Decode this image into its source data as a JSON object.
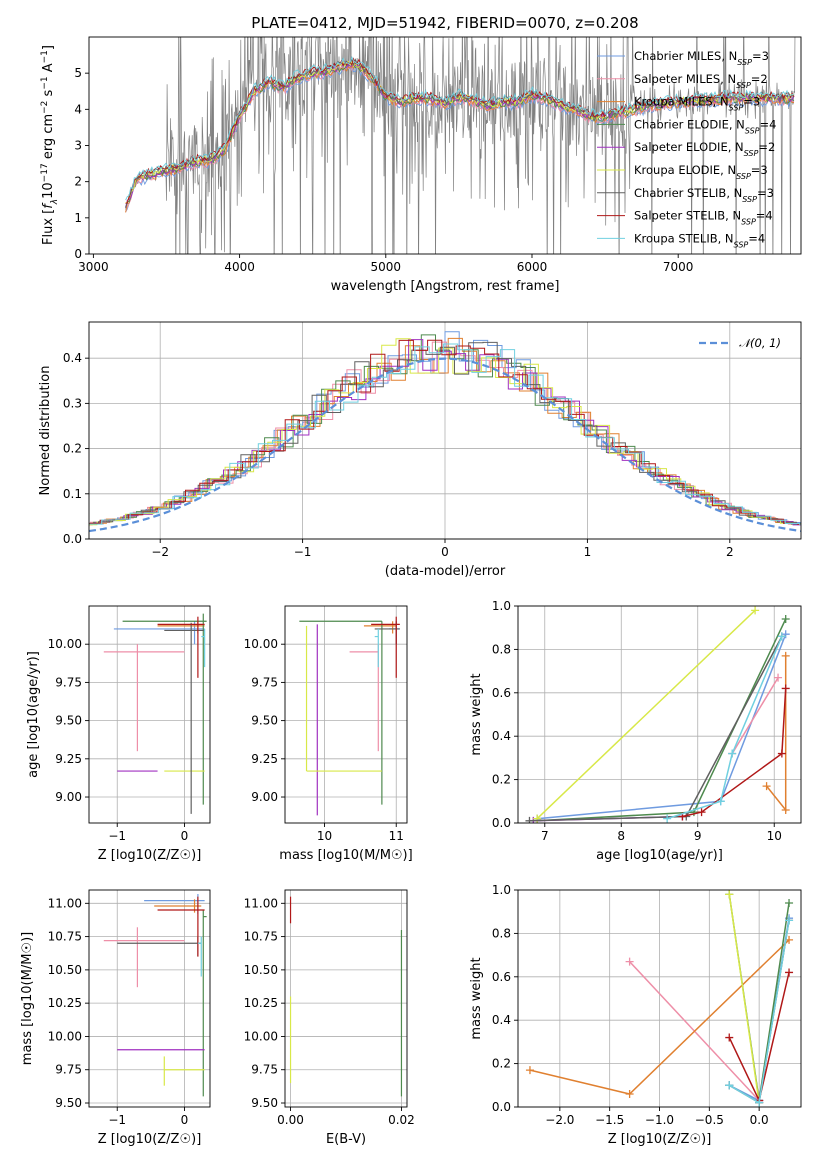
{
  "title": "PLATE=0412, MJD=51942, FIBERID=0070, z=0.208",
  "colors": {
    "Chabrier MILES": "#6f9be0",
    "Salpeter MILES": "#ee8fa8",
    "Kroupa MILES": "#e08030",
    "Chabrier ELODIE": "#4e8a4e",
    "Salpeter ELODIE": "#a030c0",
    "Kroupa ELODIE": "#d8e848",
    "Chabrier STELIB": "#606060",
    "Salpeter STELIB": "#b01818",
    "Kroupa STELIB": "#70d0e0"
  },
  "chart_data": [
    {
      "id": "spectrum",
      "type": "line",
      "xlabel": "wavelength [Angstrom, rest frame]",
      "ylabel": "Flux [f_λ 10^-17 erg cm^-2 s^-1 A^-1]",
      "xlim": [
        2970,
        7840
      ],
      "ylim": [
        0,
        6
      ],
      "xticks": [
        3000,
        4000,
        5000,
        6000,
        7000
      ],
      "yticks": [
        0,
        1,
        2,
        3,
        4,
        5
      ],
      "grid": false,
      "legend_position": "right",
      "legend": [
        {
          "name": "Chabrier MILES",
          "n": "3"
        },
        {
          "name": "Salpeter MILES",
          "n": "2"
        },
        {
          "name": "Kroupa MILES",
          "n": "3"
        },
        {
          "name": "Chabrier ELODIE",
          "n": "4"
        },
        {
          "name": "Salpeter ELODIE",
          "n": "2"
        },
        {
          "name": "Kroupa ELODIE",
          "n": "3"
        },
        {
          "name": "Chabrier STELIB",
          "n": "3"
        },
        {
          "name": "Salpeter STELIB",
          "n": "4"
        },
        {
          "name": "Kroupa STELIB",
          "n": "4"
        }
      ],
      "model_continuum": {
        "x": [
          3220,
          3300,
          3400,
          3500,
          3600,
          3700,
          3800,
          3900,
          4000,
          4100,
          4200,
          4300,
          4400,
          4500,
          4600,
          4700,
          4800,
          4900,
          5000,
          5100,
          5200,
          5300,
          5400,
          5500,
          5600,
          5700,
          5800,
          5900,
          6000,
          6100,
          6200,
          6300,
          6400,
          6500,
          6600,
          6700,
          6800,
          6900,
          7000,
          7100,
          7200,
          7300,
          7400,
          7500,
          7600,
          7700,
          7800
        ],
        "y": [
          1.3,
          2.1,
          2.2,
          2.3,
          2.4,
          2.55,
          2.6,
          2.9,
          3.8,
          4.5,
          4.75,
          4.6,
          4.9,
          5.0,
          5.05,
          5.2,
          5.25,
          4.9,
          4.35,
          4.2,
          4.3,
          4.3,
          4.15,
          4.35,
          4.25,
          4.1,
          4.2,
          4.2,
          4.4,
          4.3,
          4.1,
          4.0,
          3.8,
          3.8,
          3.9,
          4.0,
          4.1,
          4.15,
          4.2,
          4.25,
          4.25,
          4.3,
          4.3,
          4.3,
          4.3,
          4.3,
          4.3
        ]
      }
    },
    {
      "id": "residuals",
      "type": "area",
      "xlabel": "(data-model)/error",
      "ylabel": "Normed distribution",
      "xlim": [
        -2.5,
        2.5
      ],
      "ylim": [
        0,
        0.48
      ],
      "xticks": [
        -2,
        -1,
        0,
        1,
        2
      ],
      "yticks": [
        0.0,
        0.1,
        0.2,
        0.3,
        0.4
      ],
      "grid": true,
      "legend_label": "𝒩(0, 1)",
      "legend_position": "top-right"
    },
    {
      "id": "age-vs-Z",
      "type": "scatter",
      "xlabel": "Z [log10(Z/Z☉)]",
      "ylabel": "age [log10(age/yr)]",
      "xlim": [
        -1.42,
        0.38
      ],
      "ylim": [
        8.83,
        10.25
      ],
      "xticks": [
        -1,
        0
      ],
      "yticks": [
        9.0,
        9.25,
        9.5,
        9.75,
        10.0
      ],
      "grid": true,
      "points": [
        {
          "model": "Chabrier MILES",
          "x": 0.15,
          "y": 10.1,
          "xerr": [
            1.2,
            0.15
          ],
          "yerr": [
            0.1,
            0.05
          ]
        },
        {
          "model": "Salpeter MILES",
          "x": -0.7,
          "y": 9.95,
          "xerr": [
            0.5,
            0.7
          ],
          "yerr": [
            0.65,
            0.05
          ]
        },
        {
          "model": "Kroupa MILES",
          "x": 0.2,
          "y": 10.12,
          "xerr": [
            0.6,
            0.1
          ],
          "yerr": [
            0.05,
            0.03
          ]
        },
        {
          "model": "Chabrier ELODIE",
          "x": 0.28,
          "y": 10.15,
          "xerr": [
            1.2,
            0.05
          ],
          "yerr": [
            1.2,
            0.05
          ]
        },
        {
          "model": "Salpeter ELODIE",
          "x": -1.0,
          "y": 9.17,
          "xerr": [
            0.0,
            0.6
          ],
          "yerr": [
            0.0,
            0.0
          ]
        },
        {
          "model": "Kroupa ELODIE",
          "x": -0.3,
          "y": 9.17,
          "xerr": [
            0.0,
            0.6
          ],
          "yerr": [
            0.0,
            0.0
          ]
        },
        {
          "model": "Chabrier STELIB",
          "x": 0.1,
          "y": 10.09,
          "xerr": [
            0.4,
            0.2
          ],
          "yerr": [
            1.2,
            0.05
          ]
        },
        {
          "model": "Salpeter STELIB",
          "x": 0.2,
          "y": 10.13,
          "xerr": [
            0.6,
            0.1
          ],
          "yerr": [
            0.35,
            0.05
          ]
        },
        {
          "model": "Kroupa STELIB",
          "x": 0.3,
          "y": 10.05,
          "xerr": [
            0.05,
            0.0
          ],
          "yerr": [
            0.2,
            0.05
          ]
        }
      ]
    },
    {
      "id": "age-vs-mass",
      "type": "scatter",
      "xlabel": "mass [log10(M/M☉)]",
      "ylabel": "",
      "xlim": [
        9.45,
        11.15
      ],
      "ylim": [
        8.83,
        10.25
      ],
      "xticks": [
        10,
        11
      ],
      "yticks": [
        9.0,
        9.25,
        9.5,
        9.75,
        10.0
      ],
      "grid": true,
      "points": [
        {
          "model": "Chabrier MILES",
          "x": 11.0,
          "y": 10.1,
          "xerr": [
            0.1,
            0.05
          ],
          "yerr": [
            0.1,
            0.05
          ]
        },
        {
          "model": "Salpeter MILES",
          "x": 10.75,
          "y": 9.95,
          "xerr": [
            0.4,
            0.0
          ],
          "yerr": [
            0.65,
            0.05
          ]
        },
        {
          "model": "Kroupa MILES",
          "x": 10.95,
          "y": 10.12,
          "xerr": [
            0.4,
            0.05
          ],
          "yerr": [
            0.05,
            0.03
          ]
        },
        {
          "model": "Chabrier ELODIE",
          "x": 10.8,
          "y": 10.15,
          "xerr": [
            1.15,
            0.0
          ],
          "yerr": [
            1.2,
            0.0
          ]
        },
        {
          "model": "Salpeter ELODIE",
          "x": 9.9,
          "y": 10.13,
          "xerr": [
            0.0,
            0.0
          ],
          "yerr": [
            1.25,
            0.0
          ]
        },
        {
          "model": "Kroupa ELODIE",
          "x": 9.75,
          "y": 9.17,
          "xerr": [
            0.0,
            1.05
          ],
          "yerr": [
            0.0,
            0.95
          ]
        },
        {
          "model": "Chabrier STELIB",
          "x": 11.0,
          "y": 10.1,
          "xerr": [
            0.3,
            0.05
          ],
          "yerr": [
            0.1,
            0.05
          ]
        },
        {
          "model": "Salpeter STELIB",
          "x": 11.0,
          "y": 10.13,
          "xerr": [
            0.35,
            0.05
          ],
          "yerr": [
            0.35,
            0.05
          ]
        },
        {
          "model": "Kroupa STELIB",
          "x": 10.75,
          "y": 10.05,
          "xerr": [
            0.05,
            0.0
          ],
          "yerr": [
            0.2,
            0.05
          ]
        }
      ]
    },
    {
      "id": "weight-vs-age",
      "type": "line",
      "xlabel": "age [log10(age/yr)]",
      "ylabel": "mass weight",
      "xlim": [
        6.65,
        10.35
      ],
      "ylim": [
        0,
        1.0
      ],
      "xticks": [
        7,
        8,
        9,
        10
      ],
      "yticks": [
        0.0,
        0.2,
        0.4,
        0.6,
        0.8,
        1.0
      ],
      "grid": true,
      "series": [
        {
          "model": "Chabrier MILES",
          "x": [
            6.9,
            9.3,
            10.15
          ],
          "y": [
            0.02,
            0.1,
            0.87
          ]
        },
        {
          "model": "Salpeter MILES",
          "x": [
            9.45,
            10.05
          ],
          "y": [
            0.32,
            0.67
          ]
        },
        {
          "model": "Kroupa MILES",
          "x": [
            9.9,
            10.15,
            10.15
          ],
          "y": [
            0.17,
            0.06,
            0.77
          ]
        },
        {
          "model": "Chabrier ELODIE",
          "x": [
            6.9,
            8.95,
            10.15
          ],
          "y": [
            0.01,
            0.05,
            0.94
          ]
        },
        {
          "model": "Salpeter ELODIE",
          "x": [
            6.85,
            8.8
          ],
          "y": [
            0.01,
            0.03
          ]
        },
        {
          "model": "Kroupa ELODIE",
          "x": [
            6.9,
            9.75
          ],
          "y": [
            0.02,
            0.98
          ]
        },
        {
          "model": "Chabrier STELIB",
          "x": [
            6.8,
            8.85,
            10.1
          ],
          "y": [
            0.01,
            0.03,
            0.86
          ]
        },
        {
          "model": "Salpeter STELIB",
          "x": [
            8.8,
            9.05,
            10.1,
            10.15
          ],
          "y": [
            0.03,
            0.05,
            0.32,
            0.62
          ]
        },
        {
          "model": "Kroupa STELIB",
          "x": [
            8.6,
            9.3,
            9.45,
            10.1
          ],
          "y": [
            0.02,
            0.1,
            0.32,
            0.86
          ]
        }
      ]
    },
    {
      "id": "mass-vs-Z",
      "type": "scatter",
      "xlabel": "Z [log10(Z/Z☉)]",
      "ylabel": "mass [log10(M/M☉)]",
      "xlim": [
        -1.42,
        0.38
      ],
      "ylim": [
        9.47,
        11.1
      ],
      "xticks": [
        -1,
        0
      ],
      "yticks": [
        9.5,
        9.75,
        10.0,
        10.25,
        10.5,
        10.75,
        11.0
      ],
      "grid": true,
      "points": [
        {
          "model": "Chabrier MILES",
          "x": 0.2,
          "y": 11.02,
          "xerr": [
            0.8,
            0.1
          ],
          "yerr": [
            0.1,
            0.05
          ]
        },
        {
          "model": "Salpeter MILES",
          "x": -0.7,
          "y": 10.72,
          "xerr": [
            0.5,
            0.7
          ],
          "yerr": [
            0.35,
            0.1
          ]
        },
        {
          "model": "Kroupa MILES",
          "x": 0.15,
          "y": 10.98,
          "xerr": [
            0.6,
            0.1
          ],
          "yerr": [
            0.05,
            0.05
          ]
        },
        {
          "model": "Chabrier ELODIE",
          "x": 0.28,
          "y": 10.9,
          "xerr": [
            0.0,
            0.05
          ],
          "yerr": [
            1.35,
            0.05
          ]
        },
        {
          "model": "Salpeter ELODIE",
          "x": -1.0,
          "y": 9.9,
          "xerr": [
            0.0,
            1.3
          ],
          "yerr": [
            0.0,
            0.0
          ]
        },
        {
          "model": "Kroupa ELODIE",
          "x": -0.3,
          "y": 9.75,
          "xerr": [
            0.0,
            0.6
          ],
          "yerr": [
            0.12,
            0.1
          ]
        },
        {
          "model": "Chabrier STELIB",
          "x": 0.2,
          "y": 10.7,
          "xerr": [
            1.2,
            0.05
          ],
          "yerr": [
            0.1,
            0.05
          ]
        },
        {
          "model": "Salpeter STELIB",
          "x": 0.2,
          "y": 10.95,
          "xerr": [
            0.6,
            0.1
          ],
          "yerr": [
            0.35,
            0.1
          ]
        },
        {
          "model": "Kroupa STELIB",
          "x": 0.25,
          "y": 10.7,
          "xerr": [
            0.05,
            0.0
          ],
          "yerr": [
            0.25,
            0.05
          ]
        }
      ]
    },
    {
      "id": "mass-vs-EBV",
      "type": "scatter",
      "xlabel": "E(B-V)",
      "ylabel": "",
      "xlim": [
        -0.001,
        0.021
      ],
      "ylim": [
        9.47,
        11.1
      ],
      "xticks": [
        0.0,
        0.02
      ],
      "yticks": [
        9.5,
        9.75,
        10.0,
        10.25,
        10.5,
        10.75,
        11.0
      ],
      "grid": true,
      "points": [
        {
          "model": "Kroupa ELODIE",
          "x": 0.0,
          "y": 10.3,
          "xerr": [
            0.0,
            0.0
          ],
          "yerr": [
            0.65,
            0.0
          ]
        },
        {
          "model": "Salpeter STELIB",
          "x": 0.0,
          "y": 10.95,
          "xerr": [
            0.0,
            0.0
          ],
          "yerr": [
            0.1,
            0.1
          ]
        },
        {
          "model": "Chabrier ELODIE",
          "x": 0.02,
          "y": 10.2,
          "xerr": [
            0.0,
            0.0
          ],
          "yerr": [
            0.65,
            0.6
          ]
        }
      ]
    },
    {
      "id": "weight-vs-Z",
      "type": "line",
      "xlabel": "Z [log10(Z/Z☉)]",
      "ylabel": "mass weight",
      "xlim": [
        -2.42,
        0.42
      ],
      "ylim": [
        0,
        1.0
      ],
      "xticks": [
        -2.0,
        -1.5,
        -1.0,
        -0.5,
        0.0
      ],
      "yticks": [
        0.0,
        0.2,
        0.4,
        0.6,
        0.8,
        1.0
      ],
      "grid": true,
      "series": [
        {
          "model": "Chabrier MILES",
          "x": [
            -0.3,
            0.0,
            0.3
          ],
          "y": [
            0.1,
            0.03,
            0.87
          ]
        },
        {
          "model": "Salpeter MILES",
          "x": [
            -1.3,
            0.0
          ],
          "y": [
            0.67,
            0.03
          ]
        },
        {
          "model": "Kroupa MILES",
          "x": [
            -2.3,
            -1.3,
            0.3
          ],
          "y": [
            0.17,
            0.06,
            0.77
          ]
        },
        {
          "model": "Chabrier ELODIE",
          "x": [
            -0.3,
            0.0,
            0.3
          ],
          "y": [
            0.98,
            0.03,
            0.94
          ]
        },
        {
          "model": "Salpeter ELODIE",
          "x": [
            0.0,
            0.0
          ],
          "y": [
            0.02,
            0.03
          ]
        },
        {
          "model": "Kroupa ELODIE",
          "x": [
            -0.3,
            0.0
          ],
          "y": [
            0.98,
            0.02
          ]
        },
        {
          "model": "Chabrier STELIB",
          "x": [
            -0.3,
            0.0,
            0.3
          ],
          "y": [
            0.1,
            0.02,
            0.86
          ]
        },
        {
          "model": "Salpeter STELIB",
          "x": [
            -0.3,
            0.0,
            0.3
          ],
          "y": [
            0.32,
            0.03,
            0.62
          ]
        },
        {
          "model": "Kroupa STELIB",
          "x": [
            -0.3,
            0.0,
            0.3
          ],
          "y": [
            0.1,
            0.02,
            0.86
          ]
        }
      ]
    }
  ]
}
